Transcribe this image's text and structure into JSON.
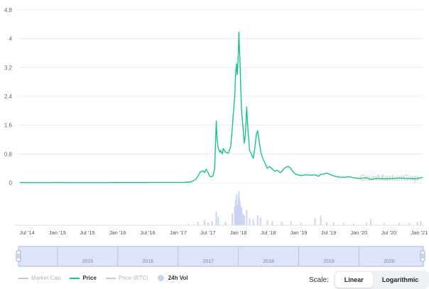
{
  "chart_data": {
    "type": "line",
    "watermark": "CoinMarketCap",
    "y_ticks": [
      "0",
      "0.8",
      "1.6",
      "2.4",
      "3.2",
      "4",
      "4.8"
    ],
    "ylim": [
      0,
      4.8
    ],
    "x_ticks": [
      "Jul '14",
      "Jan '15",
      "Jul '15",
      "Jan '16",
      "Jul '16",
      "Jan '17",
      "Jul '17",
      "Jan '18",
      "Jul '18",
      "Jan '19",
      "Jul '19",
      "Jan '20",
      "Jul '20",
      "Jan '21"
    ],
    "series": [
      {
        "name": "Price",
        "color": "#16c784",
        "x": [
          "2014-05-20",
          "2014-09-01",
          "2015-01-01",
          "2015-06-01",
          "2016-01-01",
          "2016-06-01",
          "2016-09-01",
          "2016-12-01",
          "2017-02-01",
          "2017-03-15",
          "2017-04-15",
          "2017-05-01",
          "2017-05-15",
          "2017-06-01",
          "2017-06-10",
          "2017-06-20",
          "2017-07-01",
          "2017-07-10",
          "2017-07-15",
          "2017-07-25",
          "2017-08-01",
          "2017-08-10",
          "2017-08-15",
          "2017-08-20",
          "2017-08-25",
          "2017-09-01",
          "2017-09-10",
          "2017-09-15",
          "2017-09-25",
          "2017-10-01",
          "2017-10-15",
          "2017-11-01",
          "2017-11-15",
          "2017-11-25",
          "2017-12-01",
          "2017-12-10",
          "2017-12-15",
          "2017-12-20",
          "2017-12-25",
          "2018-01-01",
          "2018-01-04",
          "2018-01-07",
          "2018-01-10",
          "2018-01-16",
          "2018-01-20",
          "2018-01-28",
          "2018-02-06",
          "2018-02-12",
          "2018-02-20",
          "2018-03-01",
          "2018-03-10",
          "2018-03-20",
          "2018-04-01",
          "2018-04-10",
          "2018-04-20",
          "2018-04-28",
          "2018-05-05",
          "2018-05-15",
          "2018-05-25",
          "2018-06-10",
          "2018-06-25",
          "2018-07-10",
          "2018-07-25",
          "2018-08-10",
          "2018-08-25",
          "2018-09-10",
          "2018-09-20",
          "2018-10-01",
          "2018-10-15",
          "2018-11-01",
          "2018-11-15",
          "2018-11-25",
          "2018-12-10",
          "2018-12-25",
          "2019-01-15",
          "2019-02-15",
          "2019-03-15",
          "2019-04-10",
          "2019-05-01",
          "2019-05-15",
          "2019-06-01",
          "2019-06-20",
          "2019-07-10",
          "2019-08-01",
          "2019-09-01",
          "2019-10-01",
          "2019-11-01",
          "2019-12-01",
          "2020-01-01",
          "2020-02-15",
          "2020-03-13",
          "2020-04-15",
          "2020-06-01",
          "2020-08-01",
          "2020-09-01",
          "2020-11-01",
          "2020-12-01",
          "2020-12-20",
          "2021-01-01",
          "2021-01-10",
          "2021-01-20"
        ],
        "values": [
          0.005,
          0.004,
          0.005,
          0.004,
          0.006,
          0.006,
          0.008,
          0.007,
          0.009,
          0.02,
          0.08,
          0.18,
          0.3,
          0.33,
          0.28,
          0.38,
          0.28,
          0.19,
          0.17,
          0.17,
          0.2,
          0.4,
          1.0,
          1.72,
          1.2,
          0.95,
          0.85,
          0.9,
          0.8,
          0.95,
          0.85,
          0.82,
          1.0,
          1.5,
          1.9,
          2.4,
          3.0,
          3.3,
          3.0,
          3.6,
          4.18,
          3.8,
          3.5,
          2.6,
          2.0,
          1.6,
          1.1,
          1.3,
          2.1,
          1.4,
          0.9,
          0.8,
          0.68,
          0.95,
          1.35,
          1.45,
          1.2,
          0.9,
          0.72,
          0.55,
          0.4,
          0.45,
          0.38,
          0.32,
          0.35,
          0.28,
          0.3,
          0.38,
          0.43,
          0.45,
          0.4,
          0.32,
          0.25,
          0.22,
          0.2,
          0.22,
          0.21,
          0.22,
          0.18,
          0.23,
          0.24,
          0.27,
          0.23,
          0.19,
          0.16,
          0.15,
          0.17,
          0.14,
          0.12,
          0.14,
          0.09,
          0.12,
          0.11,
          0.12,
          0.13,
          0.12,
          0.11,
          0.12,
          0.13,
          0.14,
          0.15
        ]
      },
      {
        "name": "24h Vol",
        "color": "#c8d2f0",
        "x": [
          "2016-09-01",
          "2016-12-01",
          "2017-03-01",
          "2017-05-01",
          "2017-06-10",
          "2017-07-01",
          "2017-07-25",
          "2017-08-20",
          "2017-09-01",
          "2017-10-15",
          "2017-11-25",
          "2017-12-10",
          "2017-12-15",
          "2017-12-20",
          "2017-12-25",
          "2018-01-01",
          "2018-01-04",
          "2018-01-07",
          "2018-01-10",
          "2018-01-16",
          "2018-01-20",
          "2018-01-28",
          "2018-02-06",
          "2018-02-20",
          "2018-03-10",
          "2018-04-01",
          "2018-04-28",
          "2018-05-15",
          "2018-06-25",
          "2018-07-25",
          "2018-09-20",
          "2018-11-15",
          "2019-01-15",
          "2019-04-10",
          "2019-05-15",
          "2019-06-20",
          "2019-08-01",
          "2019-10-01",
          "2019-12-01",
          "2020-02-15",
          "2020-03-13",
          "2020-06-01",
          "2020-09-01",
          "2020-11-01",
          "2020-12-20",
          "2021-01-10"
        ],
        "values": [
          0.02,
          0.02,
          0.04,
          0.1,
          0.15,
          0.08,
          0.12,
          0.4,
          0.25,
          0.1,
          0.35,
          0.55,
          0.75,
          0.9,
          0.6,
          0.85,
          1.0,
          0.8,
          0.7,
          0.5,
          0.55,
          0.35,
          0.3,
          0.45,
          0.2,
          0.18,
          0.3,
          0.22,
          0.15,
          0.12,
          0.1,
          0.12,
          0.06,
          0.2,
          0.28,
          0.1,
          0.08,
          0.06,
          0.05,
          0.06,
          0.18,
          0.06,
          0.07,
          0.06,
          0.1,
          0.12
        ]
      }
    ],
    "navigator_years": [
      "2015",
      "2016",
      "2017",
      "2018",
      "2019",
      "2020"
    ]
  },
  "legend": [
    {
      "label": "Market Cap",
      "active": false,
      "marker": "line",
      "color": "#c8c8c8"
    },
    {
      "label": "Price",
      "active": true,
      "marker": "line",
      "color": "#16c784"
    },
    {
      "label": "Price (BTC)",
      "active": false,
      "marker": "line",
      "color": "#c8c8c8"
    },
    {
      "label": "24h Vol",
      "active": true,
      "marker": "dot",
      "color": "#c8d2f0"
    }
  ],
  "scale": {
    "label": "Scale:",
    "options": [
      "Linear",
      "Logarithmic"
    ],
    "selected": "Linear"
  },
  "colors": {
    "price": "#16c784",
    "volume": "#c8d2f0",
    "grid": "#ececec",
    "navigator_fill": "#dfe5f8",
    "navigator_border": "#aab6e8"
  }
}
